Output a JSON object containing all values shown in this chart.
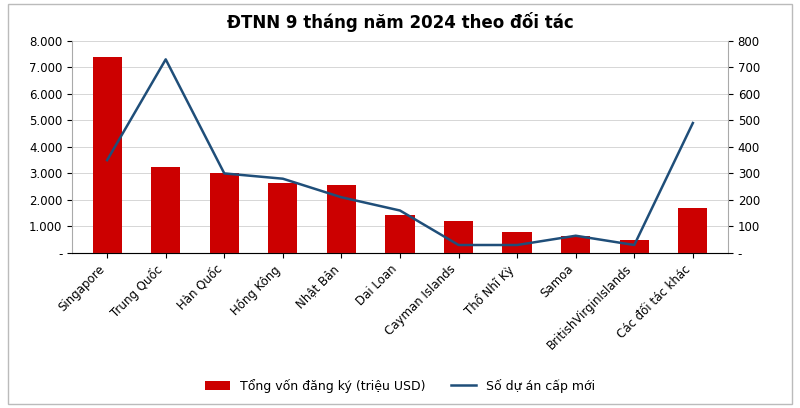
{
  "title": "ĐTNN 9 tháng năm 2024 theo đối tác",
  "categories": [
    "Singapore",
    "Trung Quốc",
    "Hàn Quốc",
    "Hồng Kông",
    "Nhật Bản",
    "Dai Loan",
    "Cayman Islands",
    "Thổ Nhĩ Kỳ",
    "Samoa",
    "BritishVirginIslands",
    "Các đối tác khác"
  ],
  "bar_values": [
    7400,
    3250,
    3000,
    2650,
    2550,
    1450,
    1200,
    800,
    650,
    480,
    1680
  ],
  "line_values": [
    350,
    730,
    300,
    280,
    210,
    160,
    30,
    30,
    65,
    30,
    490
  ],
  "bar_color": "#cc0000",
  "line_color": "#1f4e79",
  "left_ylim": [
    0,
    8000
  ],
  "right_ylim": [
    0,
    800
  ],
  "left_yticks": [
    0,
    1000,
    2000,
    3000,
    4000,
    5000,
    6000,
    7000,
    8000
  ],
  "right_yticks": [
    0,
    100,
    200,
    300,
    400,
    500,
    600,
    700,
    800
  ],
  "left_yticklabels": [
    "-",
    "1.000",
    "2.000",
    "3.000",
    "4.000",
    "5.000",
    "6.000",
    "7.000",
    "8.000"
  ],
  "right_yticklabels": [
    "-",
    "100",
    "200",
    "300",
    "400",
    "500",
    "600",
    "700",
    "800"
  ],
  "legend_bar": "Tổng vốn đăng ký (triệu USD)",
  "legend_line": "Số dự án cấp mới",
  "background_color": "#ffffff",
  "title_fontsize": 12,
  "tick_fontsize": 8.5,
  "legend_fontsize": 9,
  "bar_width": 0.5,
  "frame_color": "#cccccc"
}
